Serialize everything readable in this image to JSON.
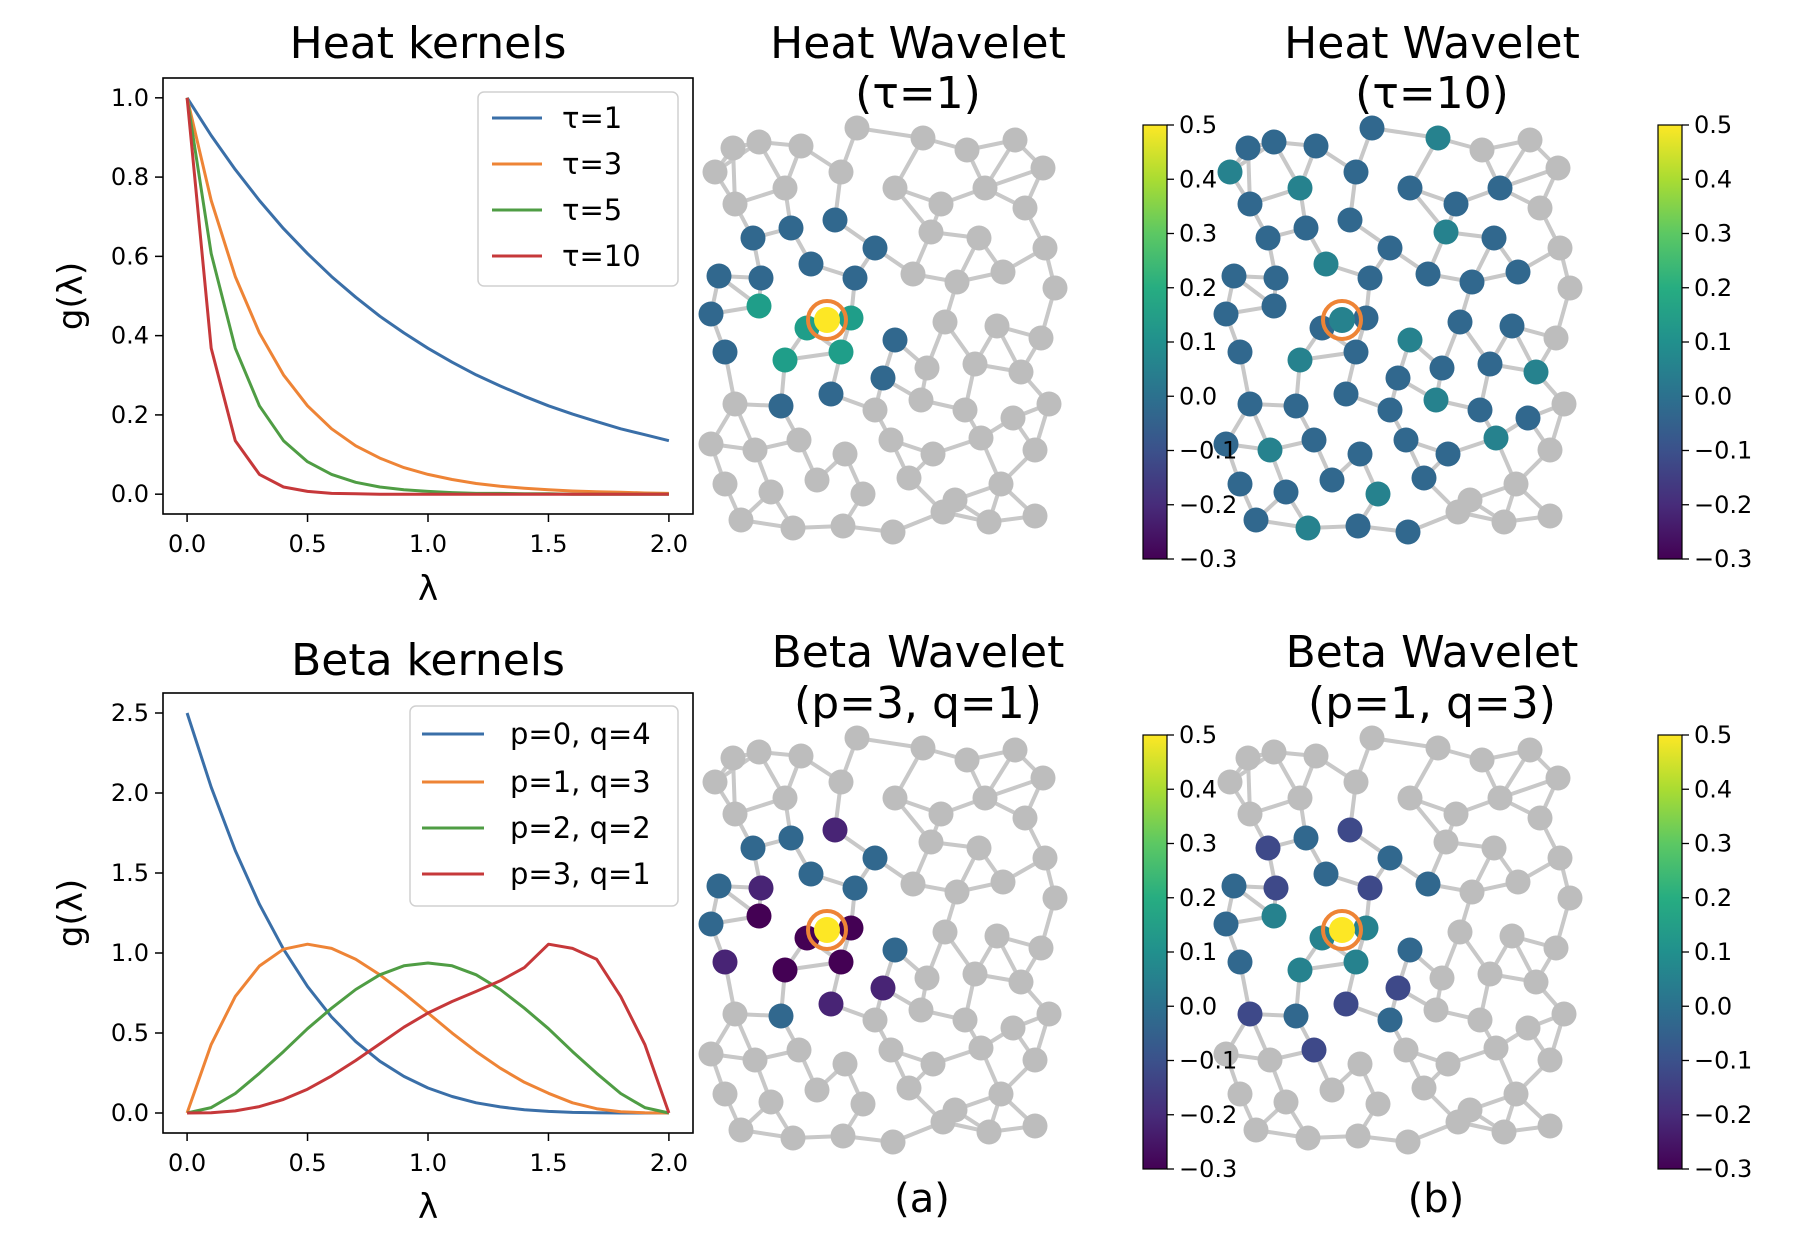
{
  "colors": {
    "blue": "#3a6fa8",
    "orange": "#ee8436",
    "green": "#4f9d44",
    "red": "#c6383a",
    "grey_node": "#bdbdbd",
    "grey_edge": "#c8c8c8",
    "center_ring": "#ee8436"
  },
  "chart_data": [
    {
      "type": "line",
      "title": "Heat kernels",
      "xlabel": "λ",
      "ylabel": "g(λ)",
      "xlim": [
        -0.1,
        2.1
      ],
      "ylim": [
        -0.05,
        1.05
      ],
      "xticks": [
        "0.0",
        "0.5",
        "1.0",
        "1.5",
        "2.0"
      ],
      "yticks": [
        "0.0",
        "0.2",
        "0.4",
        "0.6",
        "0.8",
        "1.0"
      ],
      "x": [
        0,
        0.1,
        0.2,
        0.3,
        0.4,
        0.5,
        0.6,
        0.7,
        0.8,
        0.9,
        1.0,
        1.1,
        1.2,
        1.3,
        1.4,
        1.5,
        1.6,
        1.7,
        1.8,
        1.9,
        2.0
      ],
      "series": [
        {
          "name": "τ=1",
          "color": "blue",
          "values": [
            1.0,
            0.905,
            0.819,
            0.741,
            0.67,
            0.607,
            0.549,
            0.497,
            0.449,
            0.407,
            0.368,
            0.333,
            0.301,
            0.273,
            0.247,
            0.223,
            0.202,
            0.183,
            0.165,
            0.15,
            0.135
          ]
        },
        {
          "name": "τ=3",
          "color": "orange",
          "values": [
            1.0,
            0.741,
            0.549,
            0.407,
            0.301,
            0.223,
            0.165,
            0.122,
            0.091,
            0.067,
            0.05,
            0.037,
            0.027,
            0.02,
            0.015,
            0.011,
            0.008,
            0.006,
            0.005,
            0.003,
            0.002
          ]
        },
        {
          "name": "τ=5",
          "color": "green",
          "values": [
            1.0,
            0.607,
            0.368,
            0.223,
            0.135,
            0.082,
            0.05,
            0.03,
            0.018,
            0.011,
            0.007,
            0.004,
            0.002,
            0.002,
            0.001,
            0.001,
            0.0,
            0.0,
            0.0,
            0.0,
            0.0
          ]
        },
        {
          "name": "τ=10",
          "color": "red",
          "values": [
            1.0,
            0.368,
            0.135,
            0.05,
            0.018,
            0.007,
            0.002,
            0.001,
            0.0,
            0.0,
            0.0,
            0.0,
            0.0,
            0.0,
            0.0,
            0.0,
            0.0,
            0.0,
            0.0,
            0.0,
            0.0
          ]
        }
      ],
      "legend": "top-right",
      "grid": false
    },
    {
      "type": "line",
      "title": "Beta kernels",
      "xlabel": "λ",
      "ylabel": "g(λ)",
      "xlim": [
        -0.1,
        2.1
      ],
      "ylim": [
        -0.125,
        2.625
      ],
      "xticks": [
        "0.0",
        "0.5",
        "1.0",
        "1.5",
        "2.0"
      ],
      "yticks": [
        "0.0",
        "0.5",
        "1.0",
        "1.5",
        "2.0",
        "2.5"
      ],
      "x": [
        0,
        0.1,
        0.2,
        0.3,
        0.4,
        0.5,
        0.6,
        0.7,
        0.8,
        0.9,
        1.0,
        1.1,
        1.2,
        1.3,
        1.4,
        1.5,
        1.6,
        1.7,
        1.8,
        1.9,
        2.0
      ],
      "series": [
        {
          "name": "p=0, q=4",
          "color": "blue",
          "values": [
            2.5,
            2.036,
            1.64,
            1.305,
            1.024,
            0.791,
            0.6,
            0.446,
            0.324,
            0.229,
            0.156,
            0.103,
            0.064,
            0.038,
            0.02,
            0.01,
            0.004,
            0.001,
            0.0,
            0.0,
            0.0
          ]
        },
        {
          "name": "p=1, q=3",
          "color": "orange",
          "values": [
            0.0,
            0.429,
            0.729,
            0.919,
            1.024,
            1.055,
            1.029,
            0.961,
            0.864,
            0.749,
            0.625,
            0.5,
            0.384,
            0.28,
            0.192,
            0.123,
            0.064,
            0.027,
            0.008,
            0.001,
            0.0
          ]
        },
        {
          "name": "p=2, q=2",
          "color": "green",
          "values": [
            0.0,
            0.034,
            0.122,
            0.248,
            0.384,
            0.527,
            0.655,
            0.772,
            0.864,
            0.92,
            0.9375,
            0.92,
            0.864,
            0.772,
            0.655,
            0.527,
            0.384,
            0.248,
            0.122,
            0.034,
            0.0
          ]
        },
        {
          "name": "p=3, q=1",
          "color": "red",
          "values": [
            0.0,
            0.002,
            0.013,
            0.04,
            0.085,
            0.149,
            0.232,
            0.328,
            0.432,
            0.536,
            0.625,
            0.697,
            0.76,
            0.826,
            0.909,
            1.055,
            1.029,
            0.961,
            0.729,
            0.429,
            0.0
          ]
        }
      ],
      "legend": "top-right",
      "grid": false
    }
  ],
  "graph_panels": [
    {
      "title_line1": "Heat Wavelet",
      "title_line2": "(τ=1)"
    },
    {
      "title_line1": "Heat Wavelet",
      "title_line2": "(τ=10)"
    },
    {
      "title_line1": "Beta Wavelet",
      "title_line2": "(p=3, q=1)"
    },
    {
      "title_line1": "Beta Wavelet",
      "title_line2": "(p=1, q=3)"
    }
  ],
  "colorbar": {
    "ticks": [
      "0.5",
      "0.4",
      "0.3",
      "0.2",
      "0.1",
      "0.0",
      "−0.1",
      "−0.2",
      "−0.3"
    ],
    "range": [
      -0.3,
      0.5
    ]
  },
  "subfig_labels": [
    "(a)",
    "(b)"
  ]
}
